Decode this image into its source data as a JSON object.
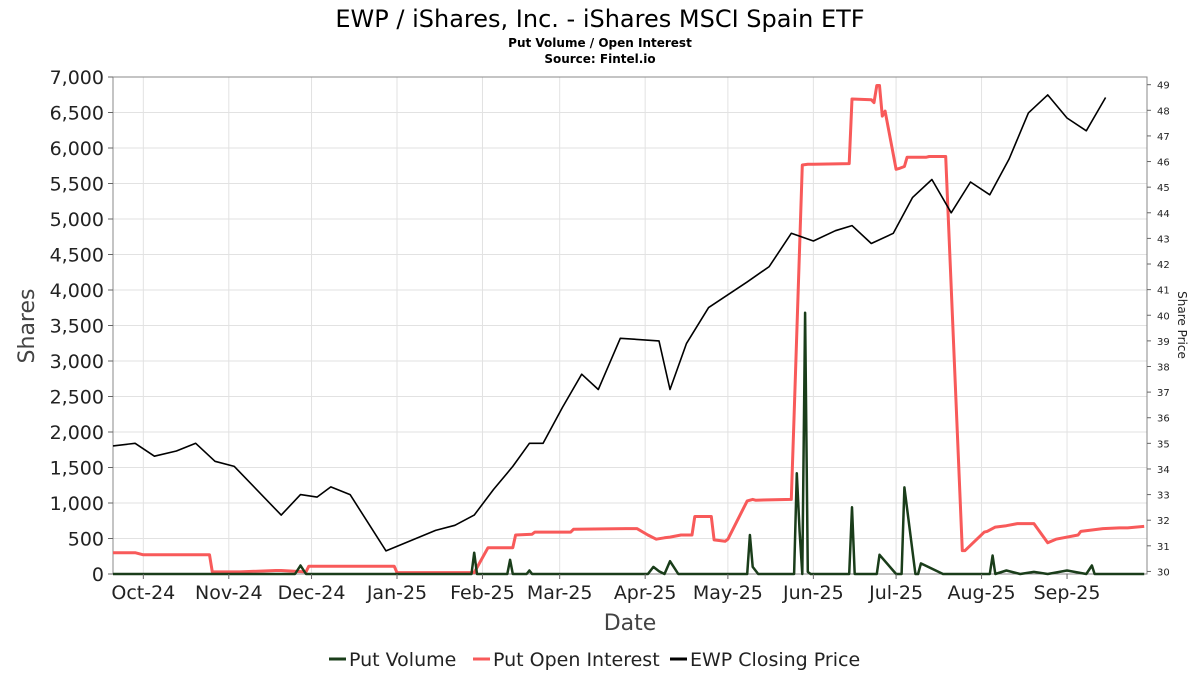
{
  "chart_data": {
    "type": "line",
    "title": "EWP / iShares, Inc. - iShares MSCI Spain ETF",
    "subtitle": "Put Volume / Open Interest",
    "source": "Source: Fintel.io",
    "xlabel": "Date",
    "ylabel": "Shares",
    "ylabel_right": "Share Price",
    "xlim": [
      "2024-09-20",
      "2025-09-30"
    ],
    "ylim": [
      0,
      7000
    ],
    "ylim_right": [
      29.9,
      49.3
    ],
    "grid": true,
    "legend_position": "bottom",
    "x_ticks": [
      "Oct-24",
      "Nov-24",
      "Dec-24",
      "Jan-25",
      "Feb-25",
      "Mar-25",
      "Apr-25",
      "May-25",
      "Jun-25",
      "Jul-25",
      "Aug-25",
      "Sep-25"
    ],
    "x_tick_dates": [
      "2024-10-01",
      "2024-11-01",
      "2024-12-01",
      "2025-01-01",
      "2025-02-01",
      "2025-03-01",
      "2025-04-01",
      "2025-05-01",
      "2025-06-01",
      "2025-07-01",
      "2025-08-01",
      "2025-09-01"
    ],
    "y_ticks": [
      "0",
      "500",
      "1,000",
      "1,500",
      "2,000",
      "2,500",
      "3,000",
      "3,500",
      "4,000",
      "4,500",
      "5,000",
      "5,500",
      "6,000",
      "6,500",
      "7,000"
    ],
    "y_tick_values": [
      0,
      500,
      1000,
      1500,
      2000,
      2500,
      3000,
      3500,
      4000,
      4500,
      5000,
      5500,
      6000,
      6500,
      7000
    ],
    "y_ticks_right": [
      "30",
      "31",
      "32",
      "33",
      "34",
      "35",
      "36",
      "37",
      "38",
      "39",
      "40",
      "41",
      "42",
      "43",
      "44",
      "45",
      "46",
      "47",
      "48",
      "49"
    ],
    "y_tick_values_right": [
      30,
      31,
      32,
      33,
      34,
      35,
      36,
      37,
      38,
      39,
      40,
      41,
      42,
      43,
      44,
      45,
      46,
      47,
      48,
      49
    ],
    "series": [
      {
        "name": "Put Volume",
        "color": "#1a3d1a",
        "axis": "left",
        "x": [
          "2024-09-20",
          "2024-10-01",
          "2024-10-15",
          "2024-11-01",
          "2024-11-15",
          "2024-11-25",
          "2024-11-27",
          "2024-11-29",
          "2024-12-10",
          "2024-12-31",
          "2025-01-15",
          "2025-01-28",
          "2025-01-29",
          "2025-01-30",
          "2025-02-10",
          "2025-02-11",
          "2025-02-12",
          "2025-02-17",
          "2025-02-18",
          "2025-02-19",
          "2025-03-05",
          "2025-03-25",
          "2025-04-01",
          "2025-04-02",
          "2025-04-04",
          "2025-04-06",
          "2025-04-08",
          "2025-04-10",
          "2025-04-13",
          "2025-04-14",
          "2025-05-01",
          "2025-05-08",
          "2025-05-09",
          "2025-05-10",
          "2025-05-12",
          "2025-05-25",
          "2025-05-26",
          "2025-05-27",
          "2025-05-28",
          "2025-05-29",
          "2025-05-30",
          "2025-05-31",
          "2025-06-01",
          "2025-06-05",
          "2025-06-14",
          "2025-06-15",
          "2025-06-16",
          "2025-06-23",
          "2025-06-24",
          "2025-06-25",
          "2025-07-01",
          "2025-07-02",
          "2025-07-03",
          "2025-07-04",
          "2025-07-08",
          "2025-07-09",
          "2025-07-10",
          "2025-07-18",
          "2025-07-19",
          "2025-07-20",
          "2025-07-31",
          "2025-08-04",
          "2025-08-05",
          "2025-08-06",
          "2025-08-10",
          "2025-08-15",
          "2025-08-20",
          "2025-08-25",
          "2025-09-01",
          "2025-09-08",
          "2025-09-10",
          "2025-09-11",
          "2025-09-20",
          "2025-09-24",
          "2025-09-25",
          "2025-09-29"
        ],
        "values": [
          0,
          0,
          0,
          0,
          0,
          0,
          120,
          0,
          0,
          0,
          0,
          0,
          300,
          0,
          0,
          200,
          0,
          0,
          50,
          0,
          0,
          0,
          0,
          0,
          100,
          40,
          0,
          180,
          0,
          0,
          0,
          0,
          550,
          100,
          0,
          0,
          1420,
          600,
          0,
          3680,
          30,
          0,
          0,
          0,
          0,
          940,
          0,
          0,
          0,
          270,
          0,
          0,
          0,
          1220,
          0,
          0,
          150,
          0,
          0,
          0,
          0,
          0,
          260,
          0,
          50,
          0,
          30,
          0,
          50,
          0,
          120,
          0,
          0,
          0,
          0,
          0
        ]
      },
      {
        "name": "Put Open Interest",
        "color": "#f85a5a",
        "axis": "left",
        "x": [
          "2024-09-20",
          "2024-09-28",
          "2024-10-01",
          "2024-10-20",
          "2024-10-25",
          "2024-10-26",
          "2024-11-05",
          "2024-11-18",
          "2024-11-20",
          "2024-11-29",
          "2024-11-30",
          "2024-12-31",
          "2025-01-01",
          "2025-01-28",
          "2025-01-29",
          "2025-02-03",
          "2025-02-12",
          "2025-02-13",
          "2025-02-19",
          "2025-02-20",
          "2025-03-05",
          "2025-03-06",
          "2025-03-25",
          "2025-03-27",
          "2025-03-29",
          "2025-04-02",
          "2025-04-05",
          "2025-04-08",
          "2025-04-10",
          "2025-04-14",
          "2025-04-18",
          "2025-04-19",
          "2025-04-25",
          "2025-04-26",
          "2025-04-30",
          "2025-05-01",
          "2025-05-08",
          "2025-05-10",
          "2025-05-11",
          "2025-05-24",
          "2025-05-25",
          "2025-05-28",
          "2025-05-30",
          "2025-05-31",
          "2025-06-01",
          "2025-06-14",
          "2025-06-15",
          "2025-06-22",
          "2025-06-23",
          "2025-06-24",
          "2025-06-25",
          "2025-06-26",
          "2025-06-27",
          "2025-07-01",
          "2025-07-02",
          "2025-07-04",
          "2025-07-05",
          "2025-07-06",
          "2025-07-12",
          "2025-07-13",
          "2025-07-18",
          "2025-07-19",
          "2025-07-25",
          "2025-07-26",
          "2025-08-02",
          "2025-08-03",
          "2025-08-06",
          "2025-08-10",
          "2025-08-14",
          "2025-08-20",
          "2025-08-25",
          "2025-08-28",
          "2025-09-05",
          "2025-09-06",
          "2025-09-10",
          "2025-09-14",
          "2025-09-20",
          "2025-09-23",
          "2025-09-29"
        ],
        "values": [
          300,
          300,
          270,
          270,
          270,
          30,
          30,
          50,
          50,
          30,
          110,
          110,
          20,
          20,
          20,
          370,
          370,
          550,
          560,
          590,
          590,
          630,
          640,
          640,
          640,
          550,
          490,
          510,
          520,
          550,
          550,
          810,
          810,
          480,
          460,
          490,
          1030,
          1050,
          1040,
          1050,
          2230,
          5760,
          5770,
          5770,
          5770,
          5780,
          6690,
          6680,
          6640,
          6880,
          6880,
          6450,
          6520,
          5700,
          5710,
          5740,
          5870,
          5870,
          5870,
          5880,
          5880,
          5880,
          330,
          330,
          590,
          600,
          660,
          680,
          710,
          710,
          440,
          490,
          550,
          600,
          620,
          640,
          650,
          650,
          670
        ]
      },
      {
        "name": "EWP Closing Price",
        "color": "#000000",
        "axis": "right",
        "x": [
          "2024-09-20",
          "2024-09-28",
          "2024-10-05",
          "2024-10-13",
          "2024-10-20",
          "2024-10-27",
          "2024-11-03",
          "2024-11-20",
          "2024-11-27",
          "2024-12-03",
          "2024-12-08",
          "2024-12-15",
          "2024-12-28",
          "2025-01-15",
          "2025-01-22",
          "2025-01-29",
          "2025-02-05",
          "2025-02-12",
          "2025-02-18",
          "2025-02-23",
          "2025-03-02",
          "2025-03-09",
          "2025-03-15",
          "2025-03-23",
          "2025-04-06",
          "2025-04-10",
          "2025-04-16",
          "2025-04-24",
          "2025-05-08",
          "2025-05-16",
          "2025-05-24",
          "2025-06-01",
          "2025-06-09",
          "2025-06-15",
          "2025-06-22",
          "2025-06-30",
          "2025-07-07",
          "2025-07-14",
          "2025-07-21",
          "2025-07-28",
          "2025-08-04",
          "2025-08-11",
          "2025-08-18",
          "2025-08-25",
          "2025-09-01",
          "2025-09-08",
          "2025-09-15"
        ],
        "values": [
          34.9,
          35.0,
          34.5,
          34.7,
          35.0,
          34.3,
          34.1,
          32.2,
          33.0,
          32.9,
          33.3,
          33.0,
          30.8,
          31.6,
          31.8,
          32.2,
          33.2,
          34.1,
          35.0,
          35.0,
          36.4,
          37.7,
          37.1,
          39.1,
          39.0,
          37.1,
          38.9,
          40.3,
          41.3,
          41.9,
          43.2,
          42.9,
          43.3,
          43.5,
          42.8,
          43.2,
          44.6,
          45.3,
          44.0,
          45.2,
          44.7,
          46.1,
          47.9,
          48.6,
          47.7,
          47.2,
          48.5
        ]
      }
    ]
  }
}
